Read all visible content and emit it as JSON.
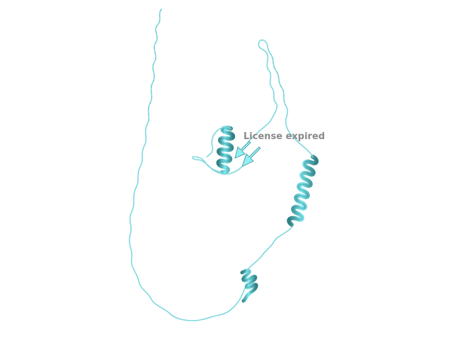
{
  "watermark": {
    "text": "License expired",
    "color": "#8a8a8a"
  },
  "colors": {
    "background": "#ffffff",
    "coil": "#7fd8de",
    "coil_shadow": "#3e8e94",
    "helix_light": "#7fe9ef",
    "helix_mid": "#4fc6cc",
    "helix_dark": "#2f7f84",
    "strand": "#8ff0f4"
  }
}
